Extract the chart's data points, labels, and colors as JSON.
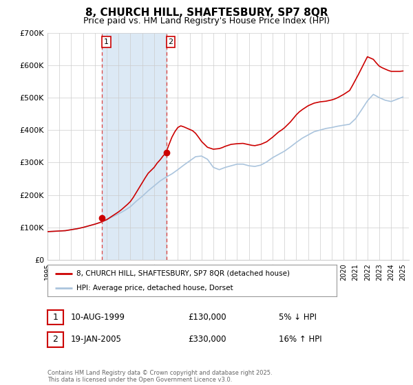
{
  "title": "8, CHURCH HILL, SHAFTESBURY, SP7 8QR",
  "subtitle": "Price paid vs. HM Land Registry's House Price Index (HPI)",
  "title_fontsize": 11,
  "subtitle_fontsize": 9,
  "ylim": [
    0,
    700000
  ],
  "yticks": [
    0,
    100000,
    200000,
    300000,
    400000,
    500000,
    600000,
    700000
  ],
  "ytick_labels": [
    "£0",
    "£100K",
    "£200K",
    "£300K",
    "£400K",
    "£500K",
    "£600K",
    "£700K"
  ],
  "xlim_start": 1995.0,
  "xlim_end": 2025.5,
  "xticks": [
    1995,
    1996,
    1997,
    1998,
    1999,
    2000,
    2001,
    2002,
    2003,
    2004,
    2005,
    2006,
    2007,
    2008,
    2009,
    2010,
    2011,
    2012,
    2013,
    2014,
    2015,
    2016,
    2017,
    2018,
    2019,
    2020,
    2021,
    2022,
    2023,
    2024,
    2025
  ],
  "hpi_color": "#aac4dd",
  "price_color": "#cc0000",
  "marker_color": "#cc0000",
  "shading_color": "#dce9f5",
  "vline_color": "#dd4444",
  "marker1_x": 1999.6,
  "marker1_y": 130000,
  "marker2_x": 2005.05,
  "marker2_y": 330000,
  "vline1_x": 1999.6,
  "vline2_x": 2005.05,
  "legend_label_red": "8, CHURCH HILL, SHAFTESBURY, SP7 8QR (detached house)",
  "legend_label_blue": "HPI: Average price, detached house, Dorset",
  "table_row1": [
    "1",
    "10-AUG-1999",
    "£130,000",
    "5% ↓ HPI"
  ],
  "table_row2": [
    "2",
    "19-JAN-2005",
    "£330,000",
    "16% ↑ HPI"
  ],
  "footnote": "Contains HM Land Registry data © Crown copyright and database right 2025.\nThis data is licensed under the Open Government Licence v3.0.",
  "background_color": "#ffffff",
  "grid_color": "#cccccc",
  "hpi_data": {
    "years": [
      1995.0,
      1995.25,
      1995.5,
      1995.75,
      1996.0,
      1996.25,
      1996.5,
      1996.75,
      1997.0,
      1997.25,
      1997.5,
      1997.75,
      1998.0,
      1998.25,
      1998.5,
      1998.75,
      1999.0,
      1999.25,
      1999.5,
      1999.75,
      2000.0,
      2000.25,
      2000.5,
      2000.75,
      2001.0,
      2001.25,
      2001.5,
      2001.75,
      2002.0,
      2002.25,
      2002.5,
      2002.75,
      2003.0,
      2003.25,
      2003.5,
      2003.75,
      2004.0,
      2004.25,
      2004.5,
      2004.75,
      2005.0,
      2005.25,
      2005.5,
      2005.75,
      2006.0,
      2006.25,
      2006.5,
      2006.75,
      2007.0,
      2007.25,
      2007.5,
      2007.75,
      2008.0,
      2008.25,
      2008.5,
      2008.75,
      2009.0,
      2009.25,
      2009.5,
      2009.75,
      2010.0,
      2010.25,
      2010.5,
      2010.75,
      2011.0,
      2011.25,
      2011.5,
      2011.75,
      2012.0,
      2012.25,
      2012.5,
      2012.75,
      2013.0,
      2013.25,
      2013.5,
      2013.75,
      2014.0,
      2014.25,
      2014.5,
      2014.75,
      2015.0,
      2015.25,
      2015.5,
      2015.75,
      2016.0,
      2016.25,
      2016.5,
      2016.75,
      2017.0,
      2017.25,
      2017.5,
      2017.75,
      2018.0,
      2018.25,
      2018.5,
      2018.75,
      2019.0,
      2019.25,
      2019.5,
      2019.75,
      2020.0,
      2020.25,
      2020.5,
      2020.75,
      2021.0,
      2021.25,
      2021.5,
      2021.75,
      2022.0,
      2022.25,
      2022.5,
      2022.75,
      2023.0,
      2023.25,
      2023.5,
      2023.75,
      2024.0,
      2024.25,
      2024.5,
      2024.75,
      2025.0
    ],
    "values": [
      87000,
      87500,
      88000,
      88500,
      89000,
      89500,
      90000,
      91500,
      93000,
      94500,
      96000,
      98000,
      100000,
      102500,
      105000,
      107500,
      110000,
      113000,
      116000,
      120000,
      124000,
      128500,
      133000,
      137500,
      142000,
      147000,
      152000,
      158000,
      164000,
      172500,
      181000,
      188500,
      196000,
      204500,
      213000,
      220500,
      228000,
      235500,
      243000,
      249000,
      255000,
      260000,
      265000,
      271500,
      278000,
      285000,
      292000,
      298500,
      305000,
      311500,
      318000,
      319000,
      320000,
      315000,
      310000,
      297500,
      285000,
      281500,
      278000,
      281500,
      285000,
      287500,
      290000,
      292500,
      295000,
      295000,
      295000,
      292500,
      290000,
      289000,
      288000,
      290000,
      292000,
      297000,
      302000,
      308500,
      315000,
      320000,
      325000,
      330000,
      335000,
      341500,
      348000,
      355000,
      362000,
      368500,
      375000,
      380000,
      385000,
      390000,
      395000,
      397500,
      400000,
      402500,
      405000,
      406500,
      408000,
      410000,
      412000,
      413500,
      415000,
      416500,
      418000,
      426500,
      435000,
      448500,
      462000,
      476000,
      490000,
      500000,
      510000,
      505000,
      500000,
      496000,
      492000,
      490000,
      488000,
      491500,
      495000,
      498500,
      502000
    ]
  },
  "price_data": {
    "years": [
      1995.0,
      1995.25,
      1995.5,
      1995.75,
      1996.0,
      1996.25,
      1996.5,
      1996.75,
      1997.0,
      1997.25,
      1997.5,
      1997.75,
      1998.0,
      1998.25,
      1998.5,
      1998.75,
      1999.0,
      1999.25,
      1999.5,
      1999.75,
      2000.0,
      2000.25,
      2000.5,
      2000.75,
      2001.0,
      2001.25,
      2001.5,
      2001.75,
      2002.0,
      2002.25,
      2002.5,
      2002.75,
      2003.0,
      2003.25,
      2003.5,
      2003.75,
      2004.0,
      2004.25,
      2004.5,
      2004.75,
      2005.0,
      2005.25,
      2005.5,
      2005.75,
      2006.0,
      2006.25,
      2006.5,
      2006.75,
      2007.0,
      2007.25,
      2007.5,
      2007.75,
      2008.0,
      2008.25,
      2008.5,
      2008.75,
      2009.0,
      2009.25,
      2009.5,
      2009.75,
      2010.0,
      2010.25,
      2010.5,
      2010.75,
      2011.0,
      2011.25,
      2011.5,
      2011.75,
      2012.0,
      2012.25,
      2012.5,
      2012.75,
      2013.0,
      2013.25,
      2013.5,
      2013.75,
      2014.0,
      2014.25,
      2014.5,
      2014.75,
      2015.0,
      2015.25,
      2015.5,
      2015.75,
      2016.0,
      2016.25,
      2016.5,
      2016.75,
      2017.0,
      2017.25,
      2017.5,
      2017.75,
      2018.0,
      2018.25,
      2018.5,
      2018.75,
      2019.0,
      2019.25,
      2019.5,
      2019.75,
      2020.0,
      2020.25,
      2020.5,
      2020.75,
      2021.0,
      2021.25,
      2021.5,
      2021.75,
      2022.0,
      2022.25,
      2022.5,
      2022.75,
      2023.0,
      2023.25,
      2023.5,
      2023.75,
      2024.0,
      2024.25,
      2024.5,
      2024.75,
      2025.0
    ],
    "values": [
      87000,
      87500,
      88000,
      88500,
      89000,
      89500,
      90000,
      91500,
      93000,
      94500,
      96000,
      98000,
      100000,
      102500,
      105000,
      107500,
      110000,
      113000,
      116000,
      120000,
      124000,
      130000,
      136000,
      142000,
      148000,
      155000,
      163000,
      171000,
      180000,
      193000,
      208000,
      223000,
      238000,
      253000,
      267000,
      276000,
      285000,
      298000,
      308000,
      320000,
      330000,
      355000,
      378000,
      395000,
      408000,
      413000,
      410000,
      406000,
      402000,
      398000,
      390000,
      378000,
      365000,
      356000,
      347000,
      344000,
      341000,
      342000,
      343000,
      346000,
      350000,
      353000,
      356000,
      357000,
      358000,
      358500,
      359000,
      357000,
      355000,
      353000,
      352000,
      354000,
      356000,
      360000,
      364000,
      371000,
      378000,
      386000,
      394000,
      400000,
      407000,
      416000,
      425000,
      436000,
      447000,
      456000,
      463000,
      469000,
      475000,
      479000,
      483000,
      485000,
      487000,
      488000,
      489000,
      491000,
      493000,
      496000,
      500000,
      505000,
      510000,
      516000,
      522000,
      538000,
      555000,
      572000,
      590000,
      608000,
      626000,
      622000,
      618000,
      607000,
      597000,
      592000,
      588000,
      584000,
      581000,
      581000,
      581000,
      581000,
      582000
    ]
  }
}
